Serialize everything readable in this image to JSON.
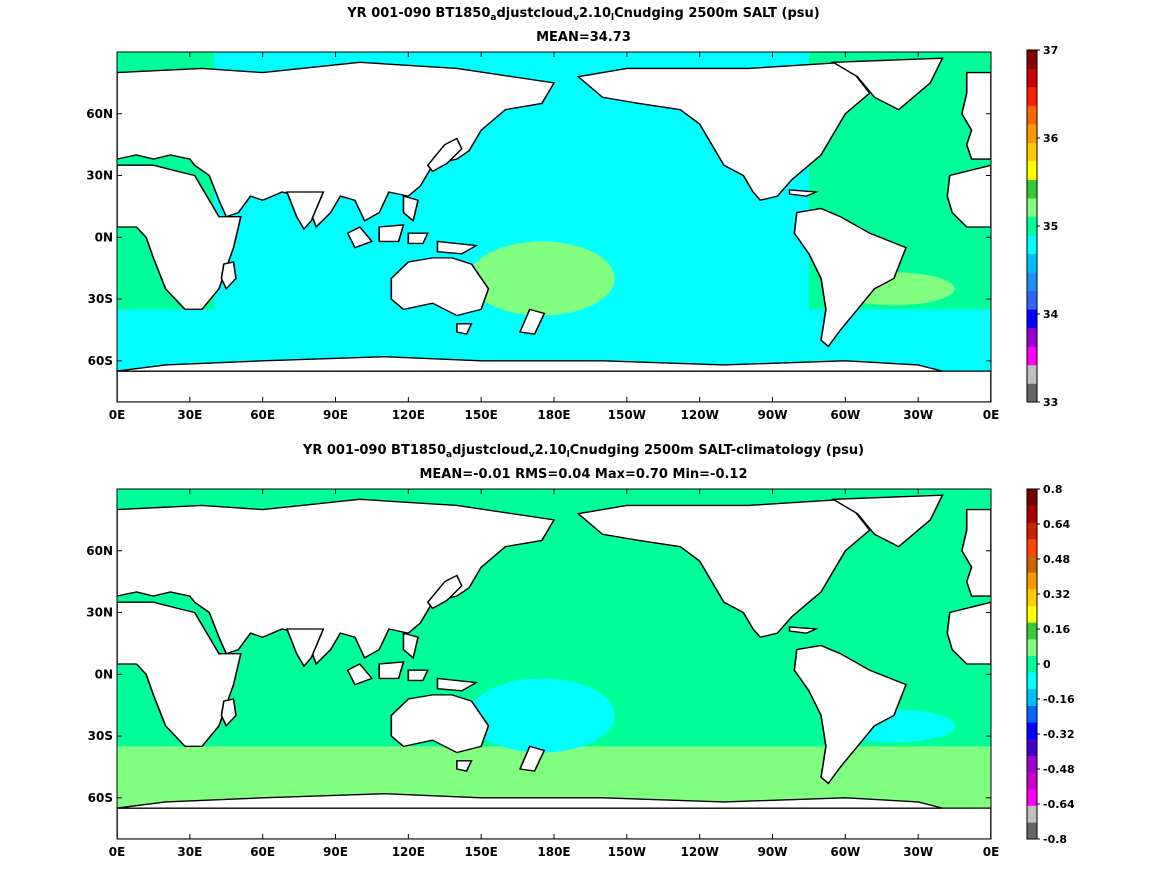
{
  "panels": [
    {
      "title_prefix": "YR 001-090 BT1850",
      "title_sub1": "a",
      "title_mid": "djustcloud",
      "title_sub2": "v",
      "title_mid2": "2.10",
      "title_sub3": "l",
      "title_suffix": "Cnudging 2500m SALT (psu)",
      "stats": "MEAN=34.73",
      "x_ticks": [
        "0E",
        "30E",
        "60E",
        "90E",
        "120E",
        "150E",
        "180E",
        "150W",
        "120W",
        "90W",
        "60W",
        "30W",
        "0E"
      ],
      "y_ticks": [
        "60N",
        "30N",
        "0N",
        "30S",
        "60S"
      ],
      "y_tick_lats": [
        60,
        30,
        0,
        -30,
        -60
      ],
      "lat_range": [
        -80,
        90
      ],
      "colorbar": {
        "labels": [
          "37",
          "36",
          "35",
          "34",
          "33"
        ],
        "label_values": [
          37,
          36,
          35,
          34,
          33
        ],
        "range": [
          33,
          37
        ],
        "colors": [
          "#666666",
          "#c0c0c0",
          "#ff00ff",
          "#9900cc",
          "#0000ff",
          "#3366ff",
          "#1e90ff",
          "#00bfff",
          "#00ffff",
          "#00ff99",
          "#80ff80",
          "#33cc33",
          "#ffff00",
          "#ffcc00",
          "#ff9900",
          "#ff6600",
          "#ff2200",
          "#cc0000",
          "#880000"
        ],
        "ocean_color": "#00ffff",
        "atlantic_color": "#00ff99",
        "south_color": "#00ffff",
        "accent_color": "#80ff80"
      }
    },
    {
      "title_prefix": "YR 001-090 BT1850",
      "title_sub1": "a",
      "title_mid": "djustcloud",
      "title_sub2": "v",
      "title_mid2": "2.10",
      "title_sub3": "l",
      "title_suffix": "Cnudging 2500m SALT-climatology (psu)",
      "stats": "MEAN=-0.01   RMS=0.04   Max=0.70   Min=-0.12",
      "x_ticks": [
        "0E",
        "30E",
        "60E",
        "90E",
        "120E",
        "150E",
        "180E",
        "150W",
        "120W",
        "90W",
        "60W",
        "30W",
        "0E"
      ],
      "y_ticks": [
        "60N",
        "30N",
        "0N",
        "30S",
        "60S"
      ],
      "y_tick_lats": [
        60,
        30,
        0,
        -30,
        -60
      ],
      "lat_range": [
        -80,
        90
      ],
      "colorbar": {
        "labels": [
          "0.8",
          "0.64",
          "0.48",
          "0.32",
          "0.16",
          "0",
          "-0.16",
          "-0.32",
          "-0.48",
          "-0.64",
          "-0.8"
        ],
        "label_values": [
          0.8,
          0.64,
          0.48,
          0.32,
          0.16,
          0,
          -0.16,
          -0.32,
          -0.48,
          -0.64,
          -0.8
        ],
        "range": [
          -0.8,
          0.8
        ],
        "colors": [
          "#666666",
          "#c0c0c0",
          "#ff00ff",
          "#cc00cc",
          "#9900cc",
          "#4400cc",
          "#0000ff",
          "#0066ff",
          "#00bfff",
          "#00ffff",
          "#00ff99",
          "#80ff80",
          "#33cc33",
          "#ffff00",
          "#ffcc00",
          "#ff9900",
          "#cc6600",
          "#ff4400",
          "#cc2200",
          "#aa0000",
          "#770000"
        ],
        "ocean_color": "#00ff99",
        "atlantic_color": "#00ff99",
        "south_color": "#80ff80",
        "accent_color": "#00ffff"
      }
    }
  ]
}
